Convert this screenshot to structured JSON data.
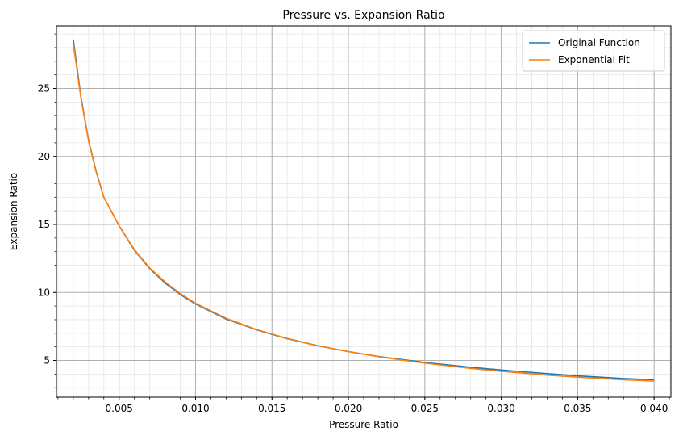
{
  "chart_data": {
    "type": "line",
    "title": "Pressure vs. Expansion Ratio",
    "xlabel": "Pressure Ratio",
    "ylabel": "Expansion Ratio",
    "xlim": [
      0.0009,
      0.0411
    ],
    "ylim": [
      2.3,
      29.6
    ],
    "x_ticks": [
      0.005,
      0.01,
      0.015,
      0.02,
      0.025,
      0.03,
      0.035,
      0.04
    ],
    "x_tick_labels": [
      "0.005",
      "0.010",
      "0.015",
      "0.020",
      "0.025",
      "0.030",
      "0.035",
      "0.040"
    ],
    "x_minor_step": 0.001,
    "y_ticks": [
      5,
      10,
      15,
      20,
      25
    ],
    "y_tick_labels": [
      "5",
      "10",
      "15",
      "20",
      "25"
    ],
    "y_minor_step": 1,
    "grid": true,
    "minor_grid": true,
    "legend_position": "top-right",
    "series": [
      {
        "name": "Original Function",
        "color": "#1f77b4",
        "x": [
          0.002,
          0.0025,
          0.003,
          0.0035,
          0.004,
          0.005,
          0.006,
          0.007,
          0.008,
          0.009,
          0.01,
          0.012,
          0.014,
          0.016,
          0.018,
          0.02,
          0.022,
          0.025,
          0.028,
          0.03,
          0.033,
          0.035,
          0.038,
          0.04
        ],
        "y": [
          28.6,
          24.4,
          21.2,
          18.9,
          17.0,
          14.9,
          13.1,
          11.75,
          10.7,
          9.85,
          9.15,
          8.05,
          7.25,
          6.6,
          6.08,
          5.65,
          5.29,
          4.85,
          4.5,
          4.3,
          4.03,
          3.87,
          3.67,
          3.58
        ]
      },
      {
        "name": "Exponential Fit",
        "color": "#ff7f0e",
        "x": [
          0.002,
          0.0025,
          0.003,
          0.0035,
          0.004,
          0.005,
          0.006,
          0.007,
          0.008,
          0.009,
          0.01,
          0.012,
          0.014,
          0.016,
          0.018,
          0.02,
          0.022,
          0.025,
          0.028,
          0.03,
          0.033,
          0.035,
          0.038,
          0.04
        ],
        "y": [
          28.3,
          24.3,
          21.15,
          18.85,
          17.0,
          14.9,
          13.15,
          11.8,
          10.78,
          9.92,
          9.2,
          8.1,
          7.27,
          6.62,
          6.09,
          5.65,
          5.27,
          4.8,
          4.42,
          4.2,
          3.92,
          3.77,
          3.58,
          3.48
        ]
      }
    ]
  }
}
